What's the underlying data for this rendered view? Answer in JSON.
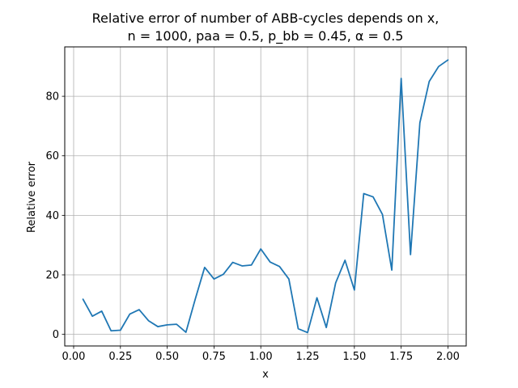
{
  "chart_data": {
    "type": "line",
    "title_lines": [
      "Relative error of number of ABB-cycles depends on x,",
      "n = 1000, paa = 0.5, p_bb = 0.45, α = 0.5"
    ],
    "xlabel": "x",
    "ylabel": "Relative error",
    "xlim": [
      -0.0475,
      2.0975
    ],
    "ylim": [
      -3.9,
      96.6
    ],
    "x_ticks": [
      0.0,
      0.25,
      0.5,
      0.75,
      1.0,
      1.25,
      1.5,
      1.75,
      2.0
    ],
    "x_tick_labels": [
      "0.00",
      "0.25",
      "0.50",
      "0.75",
      "1.00",
      "1.25",
      "1.50",
      "1.75",
      "2.00"
    ],
    "y_ticks": [
      0,
      20,
      40,
      60,
      80
    ],
    "y_tick_labels": [
      "0",
      "20",
      "40",
      "60",
      "80"
    ],
    "grid": true,
    "line_color": "#1f77b4",
    "series": [
      {
        "x": [
          0.05,
          0.1,
          0.15,
          0.2,
          0.25,
          0.3,
          0.35,
          0.4,
          0.45,
          0.5,
          0.55,
          0.6,
          0.65,
          0.7,
          0.75,
          0.8,
          0.85,
          0.9,
          0.95,
          1.0,
          1.05,
          1.1,
          1.15,
          1.2,
          1.25,
          1.3,
          1.35,
          1.4,
          1.45,
          1.5,
          1.55,
          1.6,
          1.65,
          1.7,
          1.75,
          1.8,
          1.85,
          1.9,
          1.95,
          2.0
        ],
        "y": [
          11.8,
          6.1,
          7.8,
          1.2,
          1.4,
          6.8,
          8.3,
          4.6,
          2.6,
          3.2,
          3.4,
          0.7,
          11.9,
          22.5,
          18.6,
          20.2,
          24.2,
          23.0,
          23.3,
          28.7,
          24.3,
          22.8,
          18.6,
          1.9,
          0.6,
          12.3,
          2.3,
          17.3,
          24.9,
          14.9,
          47.3,
          46.2,
          40.3,
          21.6,
          86.0,
          26.8,
          71.1,
          85.0,
          90.0,
          92.2
        ]
      }
    ]
  }
}
